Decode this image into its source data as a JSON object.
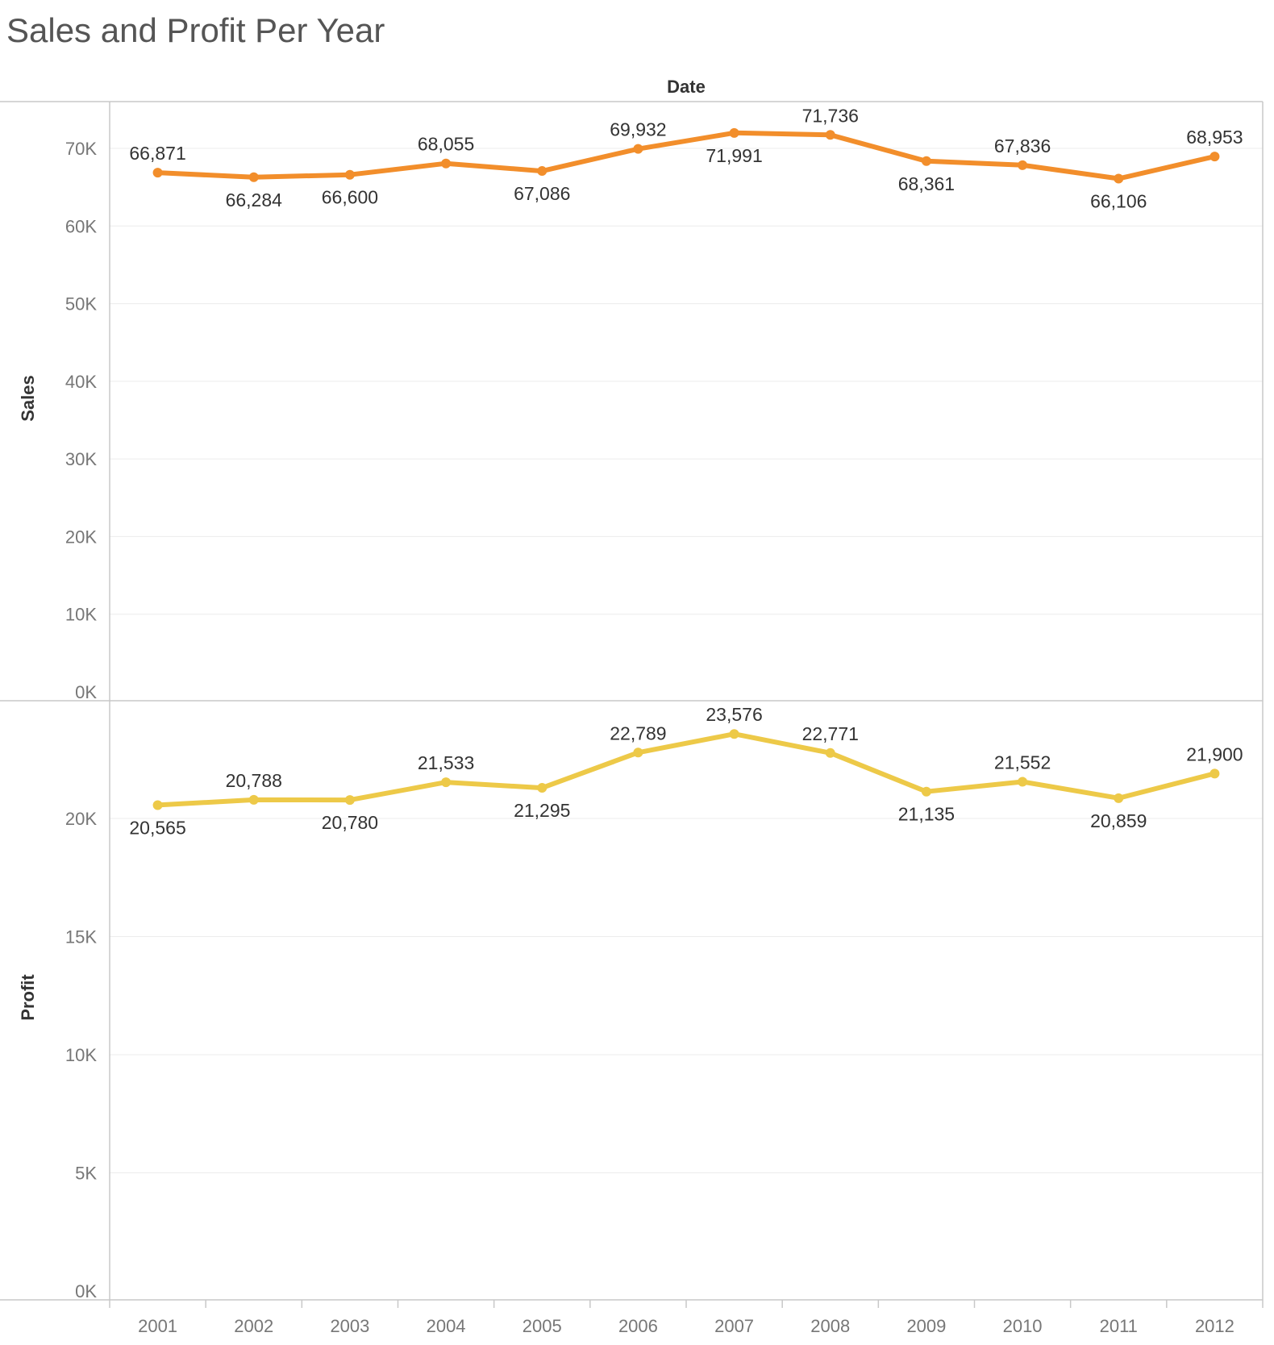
{
  "title": "Sales and Profit Per Year",
  "chart_data": {
    "type": "line",
    "column_header": "Date",
    "categories": [
      "2001",
      "2002",
      "2003",
      "2004",
      "2005",
      "2006",
      "2007",
      "2008",
      "2009",
      "2010",
      "2011",
      "2012"
    ],
    "panes": [
      {
        "name": "Sales",
        "ylabel": "Sales",
        "color": "#F28E2B",
        "ylim": [
          0,
          75000
        ],
        "ticks": [
          0,
          10000,
          20000,
          30000,
          40000,
          50000,
          60000,
          70000
        ],
        "tick_labels": [
          "0K",
          "10K",
          "20K",
          "30K",
          "40K",
          "50K",
          "60K",
          "70K"
        ],
        "values": [
          66871,
          66284,
          66600,
          68055,
          67086,
          69932,
          71991,
          71736,
          68361,
          67836,
          66106,
          68953
        ],
        "labels": [
          "66,871",
          "66,284",
          "66,600",
          "68,055",
          "67,086",
          "69,932",
          "71,991",
          "71,736",
          "68,361",
          "67,836",
          "66,106",
          "68,953"
        ],
        "label_pos": [
          "above",
          "below",
          "below",
          "above",
          "below",
          "above",
          "below",
          "above",
          "below",
          "above",
          "below",
          "above"
        ]
      },
      {
        "name": "Profit",
        "ylabel": "Profit",
        "color": "#EDC948",
        "ylim": [
          0,
          24500
        ],
        "ticks": [
          0,
          5000,
          10000,
          15000,
          20000
        ],
        "tick_labels": [
          "0K",
          "5K",
          "10K",
          "15K",
          "20K"
        ],
        "values": [
          20565,
          20788,
          20780,
          21533,
          21295,
          22789,
          23576,
          22771,
          21135,
          21552,
          20859,
          21900
        ],
        "labels": [
          "20,565",
          "20,788",
          "20,780",
          "21,533",
          "21,295",
          "22,789",
          "23,576",
          "22,771",
          "21,135",
          "21,552",
          "20,859",
          "21,900"
        ],
        "label_pos": [
          "below",
          "above",
          "below",
          "above",
          "below",
          "above",
          "above",
          "above",
          "below",
          "above",
          "below",
          "above"
        ]
      }
    ],
    "grid": true,
    "legend": "none"
  }
}
